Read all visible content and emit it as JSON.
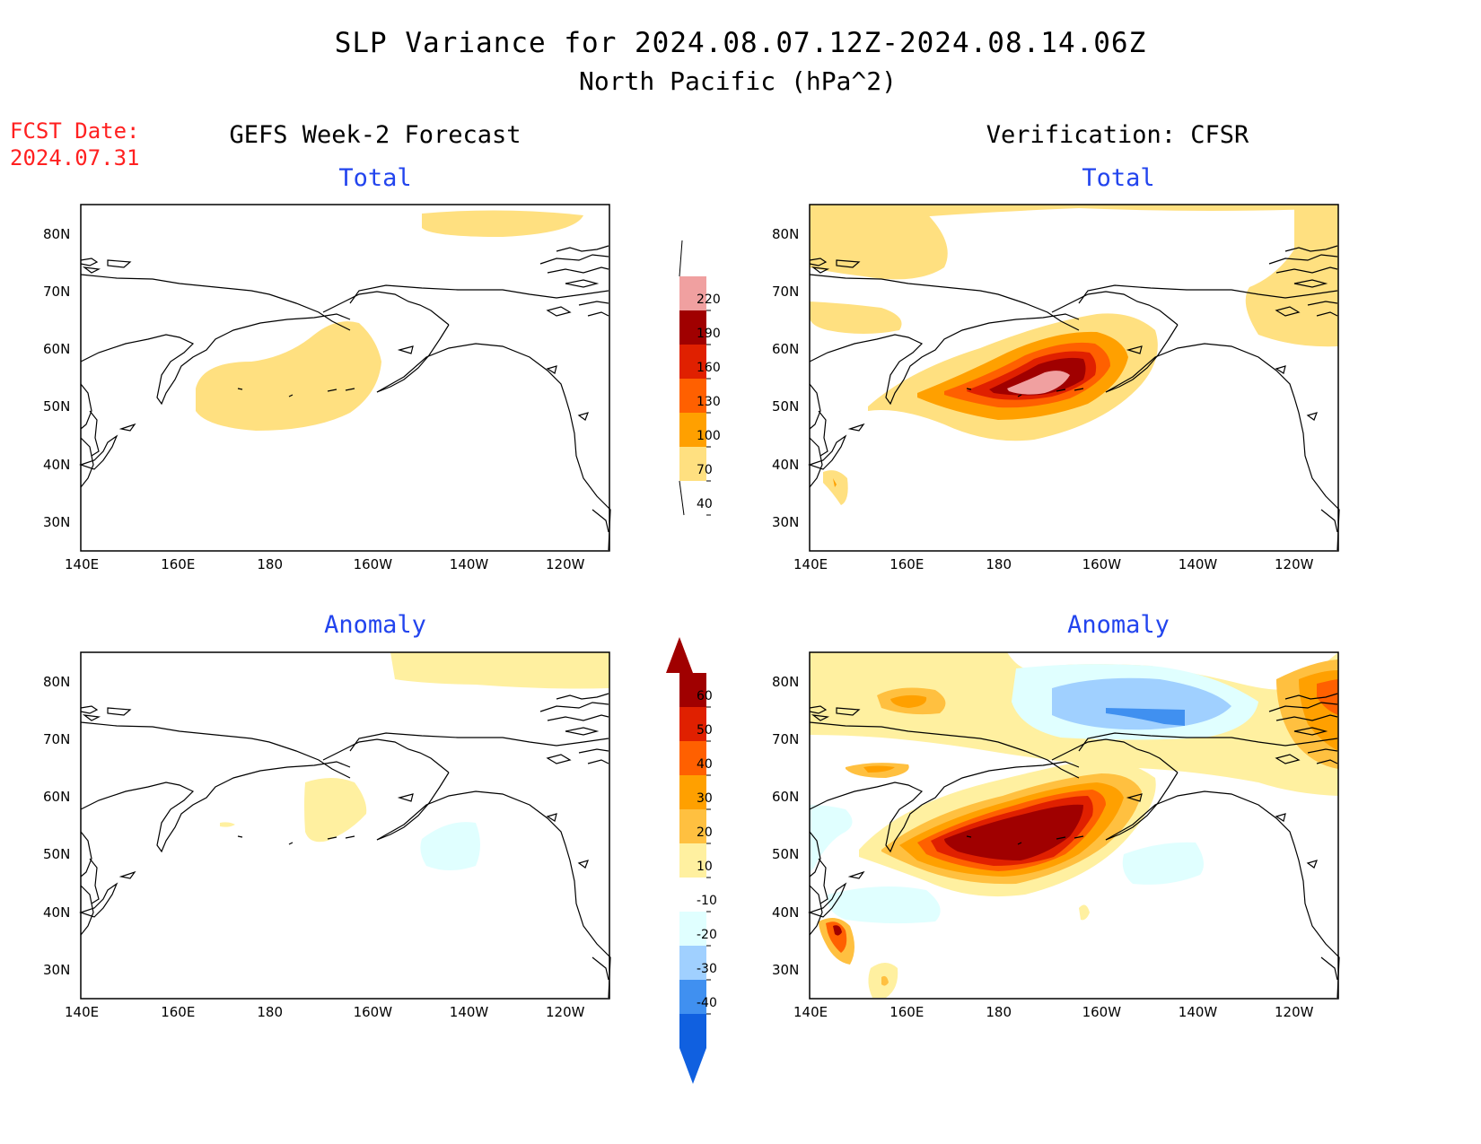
{
  "header": {
    "title": "SLP Variance for 2024.08.07.12Z-2024.08.14.06Z",
    "subtitle": "North Pacific (hPa^2)"
  },
  "fcst_date": {
    "label": "FCST Date:",
    "value": "2024.07.31"
  },
  "columns": {
    "left": "GEFS Week-2 Forecast",
    "right": "Verification: CFSR"
  },
  "panels": {
    "forecast_total": "Total",
    "verif_total": "Total",
    "forecast_anomaly": "Anomaly",
    "verif_anomaly": "Anomaly"
  },
  "axes": {
    "lon_labels": [
      "140E",
      "160E",
      "180",
      "160W",
      "140W",
      "120W"
    ],
    "lat_labels": [
      "80N",
      "70N",
      "60N",
      "50N",
      "40N",
      "30N"
    ]
  },
  "colorbars": {
    "total": {
      "levels": [
        "220",
        "190",
        "160",
        "130",
        "100",
        "70",
        "40"
      ],
      "colors": [
        "#f0a0a0",
        "#a00000",
        "#e02000",
        "#ff6000",
        "#ffa000",
        "#ffe080"
      ]
    },
    "anomaly": {
      "levels": [
        "60",
        "50",
        "40",
        "30",
        "20",
        "10",
        "-10",
        "-20",
        "-30",
        "-40"
      ],
      "colors": [
        "#a00000",
        "#e02000",
        "#ff6000",
        "#ffa000",
        "#ffc040",
        "#fff0a0",
        "#ffffff",
        "#e0ffff",
        "#a0d0ff",
        "#4090f0",
        "#1060e0"
      ]
    }
  },
  "chart_data": {
    "type": "heatmap",
    "title": "SLP Variance for 2024.08.07.12Z-2024.08.14.06Z",
    "subtitle": "North Pacific (hPa^2)",
    "xlabel": "",
    "ylabel": "",
    "x_ticks": [
      "140E",
      "160E",
      "180",
      "160W",
      "140W",
      "120W"
    ],
    "y_ticks": [
      "80N",
      "70N",
      "60N",
      "50N",
      "40N",
      "30N"
    ],
    "total_contour_levels": [
      40,
      70,
      100,
      130,
      160,
      190,
      220
    ],
    "anomaly_contour_levels": [
      -40,
      -30,
      -20,
      -10,
      10,
      20,
      30,
      40,
      50,
      60
    ],
    "panels": [
      "GEFS Week-2 Forecast Total",
      "Verification: CFSR Total",
      "GEFS Week-2 Forecast Anomaly",
      "Verification: CFSR Anomaly"
    ]
  }
}
